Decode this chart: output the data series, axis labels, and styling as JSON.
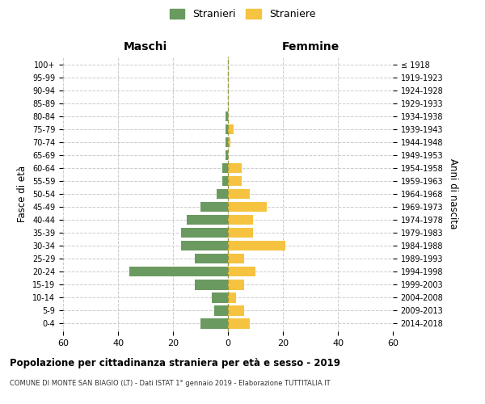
{
  "age_groups": [
    "0-4",
    "5-9",
    "10-14",
    "15-19",
    "20-24",
    "25-29",
    "30-34",
    "35-39",
    "40-44",
    "45-49",
    "50-54",
    "55-59",
    "60-64",
    "65-69",
    "70-74",
    "75-79",
    "80-84",
    "85-89",
    "90-94",
    "95-99",
    "100+"
  ],
  "birth_years": [
    "2014-2018",
    "2009-2013",
    "2004-2008",
    "1999-2003",
    "1994-1998",
    "1989-1993",
    "1984-1988",
    "1979-1983",
    "1974-1978",
    "1969-1973",
    "1964-1968",
    "1959-1963",
    "1954-1958",
    "1949-1953",
    "1944-1948",
    "1939-1943",
    "1934-1938",
    "1929-1933",
    "1924-1928",
    "1919-1923",
    "≤ 1918"
  ],
  "males": [
    10,
    5,
    6,
    12,
    36,
    12,
    17,
    17,
    15,
    10,
    4,
    2,
    2,
    1,
    1,
    1,
    1,
    0,
    0,
    0,
    0
  ],
  "females": [
    8,
    6,
    3,
    6,
    10,
    6,
    21,
    9,
    9,
    14,
    8,
    5,
    5,
    0,
    1,
    2,
    0,
    0,
    0,
    0,
    0
  ],
  "male_color": "#6a9a5f",
  "female_color": "#f5c340",
  "background_color": "#ffffff",
  "grid_color": "#cccccc",
  "title": "Popolazione per cittadinanza straniera per età e sesso - 2019",
  "subtitle": "COMUNE DI MONTE SAN BIAGIO (LT) - Dati ISTAT 1° gennaio 2019 - Elaborazione TUTTITALIA.IT",
  "xlabel_left": "Maschi",
  "xlabel_right": "Femmine",
  "ylabel_left": "Fasce di età",
  "ylabel_right": "Anni di nascita",
  "legend_male": "Stranieri",
  "legend_female": "Straniere",
  "xlim": 60,
  "figsize": [
    6.0,
    5.0
  ],
  "dpi": 100
}
